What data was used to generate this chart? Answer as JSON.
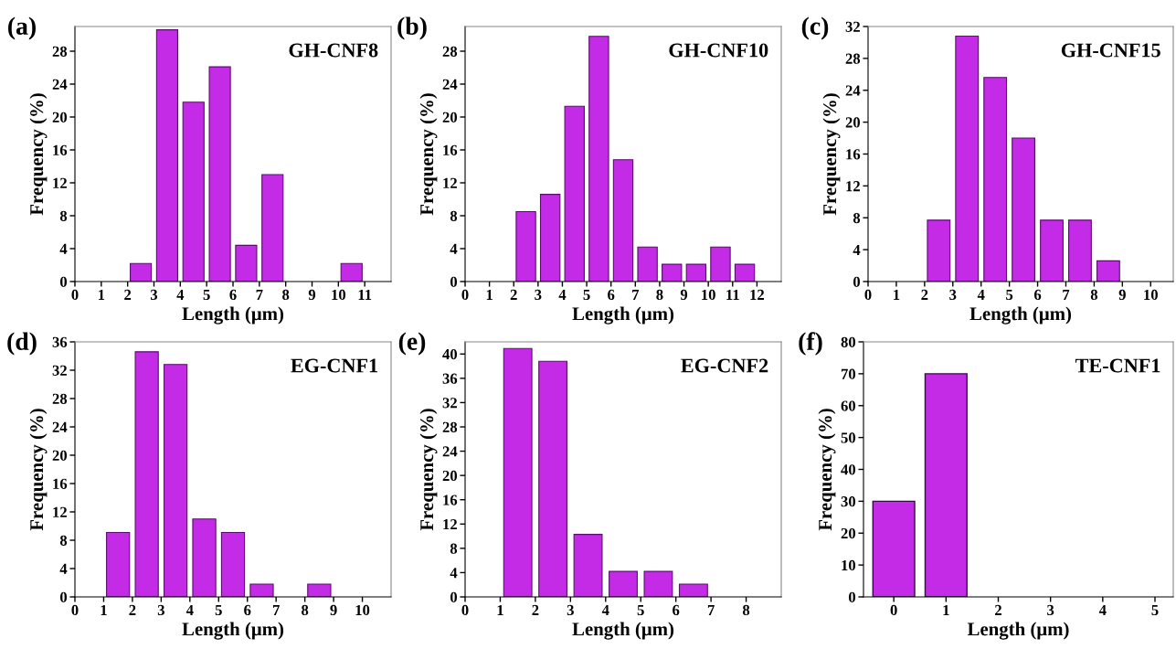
{
  "chart_data": [
    {
      "type": "histogram",
      "bins": [
        2,
        3,
        4,
        5,
        6,
        7,
        8,
        9,
        10,
        11
      ],
      "values": [
        2.2,
        30.6,
        21.8,
        26.1,
        4.4,
        13.0,
        0,
        0,
        2.2
      ],
      "color": "#c42be6",
      "xlim": [
        0,
        12
      ],
      "xticks": [
        0,
        1,
        2,
        3,
        4,
        5,
        6,
        7,
        8,
        9,
        10,
        11
      ],
      "ylim": [
        0,
        31
      ],
      "yticks": [
        0,
        4,
        8,
        12,
        16,
        20,
        24,
        28
      ],
      "xlabel": "Length (μm)",
      "ylabel": "Frequency (%)",
      "annotations": [
        "(a)",
        "GH-CNF8"
      ]
    },
    {
      "type": "histogram",
      "bins": [
        2,
        3,
        4,
        5,
        6,
        7,
        8,
        9,
        10,
        11,
        12
      ],
      "values": [
        8.5,
        10.6,
        21.3,
        29.8,
        14.8,
        4.2,
        2.1,
        2.1,
        4.2,
        2.1
      ],
      "color": "#c42be6",
      "xlim": [
        0,
        13
      ],
      "xticks": [
        0,
        1,
        2,
        3,
        4,
        5,
        6,
        7,
        8,
        9,
        10,
        11,
        12
      ],
      "ylim": [
        0,
        31
      ],
      "yticks": [
        0,
        4,
        8,
        12,
        16,
        20,
        24,
        28
      ],
      "xlabel": "Length (μm)",
      "ylabel": "Frequency (%)",
      "annotations": [
        "(b)",
        "GH-CNF10"
      ]
    },
    {
      "type": "histogram",
      "bins": [
        2,
        3,
        4,
        5,
        6,
        7,
        8,
        9
      ],
      "values": [
        7.7,
        30.8,
        25.6,
        18.0,
        7.7,
        7.7,
        2.6
      ],
      "color": "#c42be6",
      "xlim": [
        0,
        10.8
      ],
      "xticks": [
        0,
        1,
        2,
        3,
        4,
        5,
        6,
        7,
        8,
        9,
        10
      ],
      "ylim": [
        0,
        32
      ],
      "yticks": [
        0,
        4,
        8,
        12,
        16,
        20,
        24,
        28,
        32
      ],
      "xlabel": "Length (μm)",
      "ylabel": "Frequency (%)",
      "annotations": [
        "(c)",
        "GH-CNF15"
      ]
    },
    {
      "type": "histogram",
      "bins": [
        1,
        2,
        3,
        4,
        5,
        6,
        7,
        8,
        9
      ],
      "values": [
        9.1,
        34.6,
        32.8,
        11.0,
        9.1,
        1.8,
        0,
        1.8
      ],
      "color": "#c42be6",
      "xlim": [
        0,
        11
      ],
      "xticks": [
        0,
        1,
        2,
        3,
        4,
        5,
        6,
        7,
        8,
        9,
        10
      ],
      "ylim": [
        0,
        36
      ],
      "yticks": [
        0,
        4,
        8,
        12,
        16,
        20,
        24,
        28,
        32,
        36
      ],
      "xlabel": "Length (μm)",
      "ylabel": "Frequency (%)",
      "annotations": [
        "(d)",
        "EG-CNF1"
      ]
    },
    {
      "type": "histogram",
      "bins": [
        1,
        2,
        3,
        4,
        5,
        6,
        7
      ],
      "values": [
        40.9,
        38.8,
        10.3,
        4.2,
        4.2,
        2.1
      ],
      "color": "#c42be6",
      "xlim": [
        0,
        9
      ],
      "xticks": [
        0,
        1,
        2,
        3,
        4,
        5,
        6,
        7,
        8
      ],
      "ylim": [
        0,
        42
      ],
      "yticks": [
        0,
        4,
        8,
        12,
        16,
        20,
        24,
        28,
        32,
        36,
        40
      ],
      "xlabel": "Length (μm)",
      "ylabel": "Frequency (%)",
      "annotations": [
        "(e)",
        "EG-CNF2"
      ]
    },
    {
      "type": "bar",
      "x": [
        0,
        1
      ],
      "values": [
        30,
        70
      ],
      "color": "#c42be6",
      "xlim": [
        -0.58,
        5.35
      ],
      "xticks": [
        0,
        1,
        2,
        3,
        4,
        5
      ],
      "ylim": [
        0,
        80
      ],
      "yticks": [
        0,
        10,
        20,
        30,
        40,
        50,
        60,
        70,
        80
      ],
      "xlabel": "Length (μm)",
      "ylabel": "Frequency (%)",
      "annotations": [
        "(f)",
        "TE-CNF1"
      ]
    }
  ]
}
